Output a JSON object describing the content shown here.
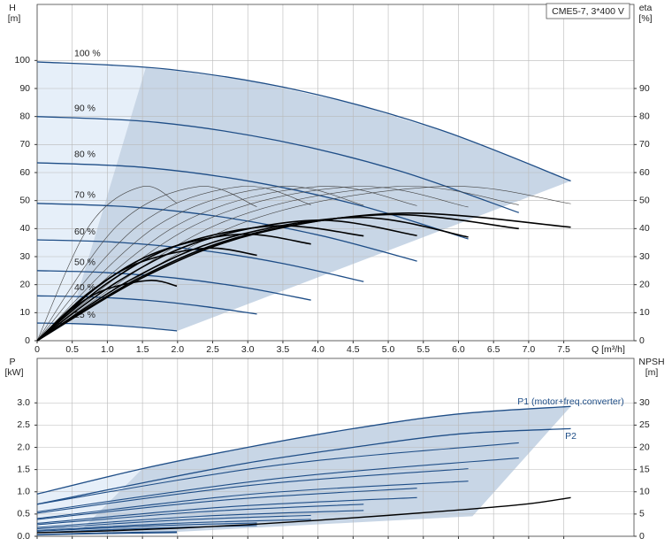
{
  "chart_data": [
    {
      "type": "line",
      "title": "CME5-7, 3*400 V",
      "ylabel": "H",
      "yunit": "[m]",
      "y2label": "eta",
      "y2unit": "[%]",
      "xlabel": "Q [m³/h]",
      "xlim": [
        0,
        8.5
      ],
      "ylim": [
        0,
        120
      ],
      "y2lim": [
        0,
        120
      ],
      "grid": true,
      "label_position": "start",
      "xticks": [
        0,
        0.5,
        {
          "value": 1,
          "label": "1.0"
        },
        1.5,
        {
          "value": 2,
          "label": "2.0"
        },
        2.5,
        {
          "value": 3,
          "label": "3.0"
        },
        3.5,
        {
          "value": 4,
          "label": "4.0"
        },
        4.5,
        {
          "value": 5,
          "label": "5.0"
        },
        5.5,
        {
          "value": 6,
          "label": "6.0"
        },
        6.5,
        {
          "value": 7,
          "label": "7.0"
        },
        7.5
      ],
      "yticks": [
        0,
        10,
        20,
        30,
        40,
        50,
        60,
        70,
        80,
        90,
        100
      ],
      "y2ticks": [
        0,
        10,
        20,
        30,
        40,
        50,
        60,
        70,
        80,
        90
      ],
      "areas": [
        {
          "color": "#e6eff9",
          "x": [
            0,
            0,
            1.55,
            0.45
          ],
          "values": [
            0,
            99.5,
            97.7,
            6.1
          ]
        },
        {
          "color": "#c8d6e6",
          "x": [
            1.55,
            3.0,
            4.5,
            6.0,
            7.6,
            2.0,
            1.0,
            0.45
          ],
          "values": [
            97.7,
            92.9,
            84.6,
            73.0,
            57,
            3.5,
            5.6,
            6.1
          ]
        }
      ],
      "series": [
        {
          "name": "100 %",
          "color": "#1f4e87",
          "linewidth": 1.3,
          "x": [
            0,
            1.9,
            3.8,
            5.7,
            7.6
          ],
          "values": [
            99.5,
            96.8,
            88.9,
            75.6,
            57
          ]
        },
        {
          "name": "90 %",
          "color": "#1f4e87",
          "linewidth": 1.3,
          "x": [
            0,
            1.715,
            3.43,
            5.145,
            6.86
          ],
          "values": [
            80,
            77.9,
            71.4,
            60.7,
            45.7
          ]
        },
        {
          "name": "80 %",
          "color": "#1f4e87",
          "linewidth": 1.3,
          "x": [
            0,
            1.535,
            3.07,
            4.605,
            6.14
          ],
          "values": [
            63.5,
            61.8,
            56.7,
            48.2,
            36.3
          ]
        },
        {
          "name": "70 %",
          "color": "#1f4e87",
          "linewidth": 1.3,
          "x": [
            0,
            1.35,
            2.7,
            4.06,
            5.41
          ],
          "values": [
            49,
            47.7,
            43.9,
            37.4,
            28.4
          ]
        },
        {
          "name": "60 %",
          "color": "#1f4e87",
          "linewidth": 1.3,
          "x": [
            0,
            1.16,
            2.33,
            3.49,
            4.65
          ],
          "values": [
            36,
            35.1,
            32.3,
            27.6,
            21.1
          ]
        },
        {
          "name": "50 %",
          "color": "#1f4e87",
          "linewidth": 1.3,
          "x": [
            0,
            0.98,
            1.95,
            2.93,
            3.9
          ],
          "values": [
            25,
            24.3,
            22.4,
            19.1,
            14.5
          ]
        },
        {
          "name": "40 %",
          "color": "#1f4e87",
          "linewidth": 1.3,
          "x": [
            0,
            0.78,
            1.57,
            2.35,
            3.13
          ],
          "values": [
            16,
            15.6,
            14.4,
            12.3,
            9.5
          ]
        },
        {
          "name": "25 %",
          "color": "#1f4e87",
          "linewidth": 1.3,
          "x": [
            0,
            0.5,
            1,
            1.49,
            1.99
          ],
          "values": [
            6.3,
            6.1,
            5.6,
            4.7,
            3.5
          ]
        },
        {
          "axis": "y2",
          "color": "#444444",
          "linewidth": 0.6,
          "x": [
            0,
            0.75,
            1.5,
            1.99
          ],
          "values": [
            0,
            41.3,
            55,
            49.1
          ]
        },
        {
          "axis": "y2",
          "color": "#444444",
          "linewidth": 0.6,
          "x": [
            0,
            1.15,
            2.3,
            3.13
          ],
          "values": [
            0,
            41.3,
            55,
            47.8
          ]
        },
        {
          "axis": "y2",
          "color": "#444444",
          "linewidth": 0.6,
          "x": [
            0,
            1.45,
            2.9,
            3.9
          ],
          "values": [
            0,
            41.3,
            55,
            48.5
          ]
        },
        {
          "axis": "y2",
          "color": "#444444",
          "linewidth": 0.6,
          "x": [
            0,
            1.725,
            3.45,
            4.65
          ],
          "values": [
            0,
            41.3,
            55,
            48.3
          ]
        },
        {
          "axis": "y2",
          "color": "#444444",
          "linewidth": 0.6,
          "x": [
            0,
            2.0,
            4.0,
            5.41
          ],
          "values": [
            0,
            41.3,
            55,
            48.2
          ]
        },
        {
          "axis": "y2",
          "color": "#444444",
          "linewidth": 0.6,
          "x": [
            0,
            2.25,
            4.5,
            6.14
          ],
          "values": [
            0,
            41.3,
            55,
            47.7
          ]
        },
        {
          "axis": "y2",
          "color": "#444444",
          "linewidth": 0.6,
          "x": [
            0,
            2.55,
            5.1,
            6.86
          ],
          "values": [
            0,
            41.3,
            55,
            48.5
          ]
        },
        {
          "axis": "y2",
          "color": "#444444",
          "linewidth": 0.6,
          "x": [
            0,
            2.85,
            5.7,
            7.6
          ],
          "values": [
            0,
            41.3,
            55,
            48.9
          ]
        },
        {
          "axis": "y2",
          "color": "#000000",
          "linewidth": 1.6,
          "x": [
            0,
            1.56,
            3.12,
            5.2,
            7.6
          ],
          "values": [
            0,
            23.2,
            38.2,
            45.5,
            40.5
          ]
        },
        {
          "axis": "y2",
          "color": "#000000",
          "linewidth": 1.6,
          "x": [
            0,
            1.5,
            3.0,
            5.0,
            6.86
          ],
          "values": [
            0,
            23,
            37.8,
            45,
            40
          ]
        },
        {
          "axis": "y2",
          "color": "#000000",
          "linewidth": 1.6,
          "x": [
            0,
            1.38,
            2.76,
            4.6,
            6.14
          ],
          "values": [
            0,
            22.4,
            37,
            44,
            37
          ]
        },
        {
          "axis": "y2",
          "color": "#000000",
          "linewidth": 1.6,
          "x": [
            0,
            1.2,
            2.4,
            4.0,
            5.41
          ],
          "values": [
            0,
            21.9,
            36.1,
            43,
            37.5
          ]
        },
        {
          "axis": "y2",
          "color": "#000000",
          "linewidth": 1.6,
          "x": [
            0,
            1.02,
            2.04,
            3.4,
            4.65
          ],
          "values": [
            0,
            20.9,
            34.4,
            41,
            37.4
          ]
        },
        {
          "axis": "y2",
          "color": "#000000",
          "linewidth": 1.6,
          "x": [
            0,
            0.87,
            1.74,
            2.9,
            3.9
          ],
          "values": [
            0,
            19.4,
            31.9,
            38,
            34.5
          ]
        },
        {
          "axis": "y2",
          "color": "#000000",
          "linewidth": 1.6,
          "x": [
            0,
            0.72,
            1.44,
            2.4,
            3.13
          ],
          "values": [
            0,
            16.8,
            27.7,
            33,
            30.5
          ]
        },
        {
          "axis": "y2",
          "color": "#000000",
          "linewidth": 1.6,
          "x": [
            0,
            0.48,
            0.96,
            1.6,
            1.99
          ],
          "values": [
            0,
            11,
            18.1,
            21.5,
            19.5
          ]
        }
      ]
    },
    {
      "type": "line",
      "ylabel": "P",
      "yunit": "[kW]",
      "y2label": "NPSH",
      "y2unit": "[m]",
      "xlim": [
        0,
        8.5
      ],
      "ylim": [
        0,
        4
      ],
      "y2lim": [
        0,
        40
      ],
      "grid": true,
      "show_xtick_labels": false,
      "label_position": "end",
      "xticks": [
        0,
        0.5,
        1,
        1.5,
        2,
        2.5,
        3,
        3.5,
        4,
        4.5,
        5,
        5.5,
        6,
        6.5,
        7,
        7.5
      ],
      "yticks": [
        {
          "value": 0,
          "label": "0.0"
        },
        0.5,
        {
          "value": 1,
          "label": "1.0"
        },
        1.5,
        {
          "value": 2,
          "label": "2.0"
        },
        2.5,
        {
          "value": 3,
          "label": "3.0"
        }
      ],
      "y2ticks": [
        0,
        5,
        10,
        15,
        20,
        25,
        30
      ],
      "areas": [
        {
          "color": "#e6eff9",
          "x": [
            0,
            0,
            1.5,
            0.6
          ],
          "values": [
            0,
            0.95,
            1.52,
            0.1
          ]
        },
        {
          "color": "#c8d6e6",
          "x": [
            1.5,
            3,
            4.5,
            6,
            7.6,
            6.2,
            2.0,
            0.6
          ],
          "values": [
            1.52,
            2.0,
            2.42,
            2.75,
            2.92,
            0.45,
            0.1,
            0.1
          ]
        }
      ],
      "series": [
        {
          "name": "P1 (motor+freq.converter)",
          "label_side": "above",
          "color": "#1f4e87",
          "linewidth": 1.3,
          "x": [
            0,
            1.5,
            3,
            4.5,
            6,
            7.6
          ],
          "values": [
            0.95,
            1.52,
            2.0,
            2.42,
            2.75,
            2.92
          ]
        },
        {
          "name": "P2",
          "label_side": "below",
          "color": "#1f4e87",
          "linewidth": 1.3,
          "x": [
            0,
            1.5,
            3,
            4.5,
            6,
            7.6
          ],
          "values": [
            0.72,
            1.2,
            1.65,
            2.0,
            2.3,
            2.42
          ]
        },
        {
          "color": "#1f4e87",
          "linewidth": 1.1,
          "x": [
            0,
            3.43,
            6.86
          ],
          "values": [
            0.72,
            1.6,
            2.1
          ]
        },
        {
          "color": "#1f4e87",
          "linewidth": 1.1,
          "x": [
            0,
            3.43,
            6.86
          ],
          "values": [
            0.55,
            1.3,
            1.76
          ]
        },
        {
          "color": "#1f4e87",
          "linewidth": 1.1,
          "x": [
            0,
            3.07,
            6.14
          ],
          "values": [
            0.52,
            1.15,
            1.52
          ]
        },
        {
          "color": "#1f4e87",
          "linewidth": 1.1,
          "x": [
            0,
            3.07,
            6.14
          ],
          "values": [
            0.4,
            0.95,
            1.24
          ]
        },
        {
          "color": "#1f4e87",
          "linewidth": 1.1,
          "x": [
            0,
            2.7,
            5.41
          ],
          "values": [
            0.38,
            0.82,
            1.08
          ]
        },
        {
          "color": "#1f4e87",
          "linewidth": 1.1,
          "x": [
            0,
            2.7,
            5.41
          ],
          "values": [
            0.29,
            0.66,
            0.87
          ]
        },
        {
          "color": "#1f4e87",
          "linewidth": 1.1,
          "x": [
            0,
            2.33,
            4.65
          ],
          "values": [
            0.26,
            0.55,
            0.72
          ]
        },
        {
          "color": "#1f4e87",
          "linewidth": 1.1,
          "x": [
            0,
            2.33,
            4.65
          ],
          "values": [
            0.2,
            0.45,
            0.58
          ]
        },
        {
          "color": "#1f4e87",
          "linewidth": 1.1,
          "x": [
            0,
            1.95,
            3.9
          ],
          "values": [
            0.17,
            0.36,
            0.47
          ]
        },
        {
          "color": "#1f4e87",
          "linewidth": 1.1,
          "x": [
            0,
            1.95,
            3.9
          ],
          "values": [
            0.13,
            0.29,
            0.38
          ]
        },
        {
          "color": "#1f4e87",
          "linewidth": 1.1,
          "x": [
            0,
            1.57,
            3.13
          ],
          "values": [
            0.11,
            0.23,
            0.3
          ]
        },
        {
          "color": "#1f4e87",
          "linewidth": 1.1,
          "x": [
            0,
            1.57,
            3.13
          ],
          "values": [
            0.08,
            0.18,
            0.24
          ]
        },
        {
          "color": "#1f4e87",
          "linewidth": 1.1,
          "x": [
            0,
            1,
            1.99
          ],
          "values": [
            0.04,
            0.08,
            0.1
          ]
        },
        {
          "color": "#1f4e87",
          "linewidth": 1.1,
          "x": [
            0,
            1,
            1.99
          ],
          "values": [
            0.03,
            0.06,
            0.08
          ]
        },
        {
          "axis": "y2",
          "color": "#000000",
          "linewidth": 1.4,
          "x": [
            0,
            1,
            2,
            3,
            4,
            5,
            6,
            7,
            7.6
          ],
          "values": [
            0.8,
            1.2,
            1.8,
            2.6,
            3.6,
            4.7,
            5.9,
            7.3,
            8.7
          ]
        }
      ]
    }
  ]
}
